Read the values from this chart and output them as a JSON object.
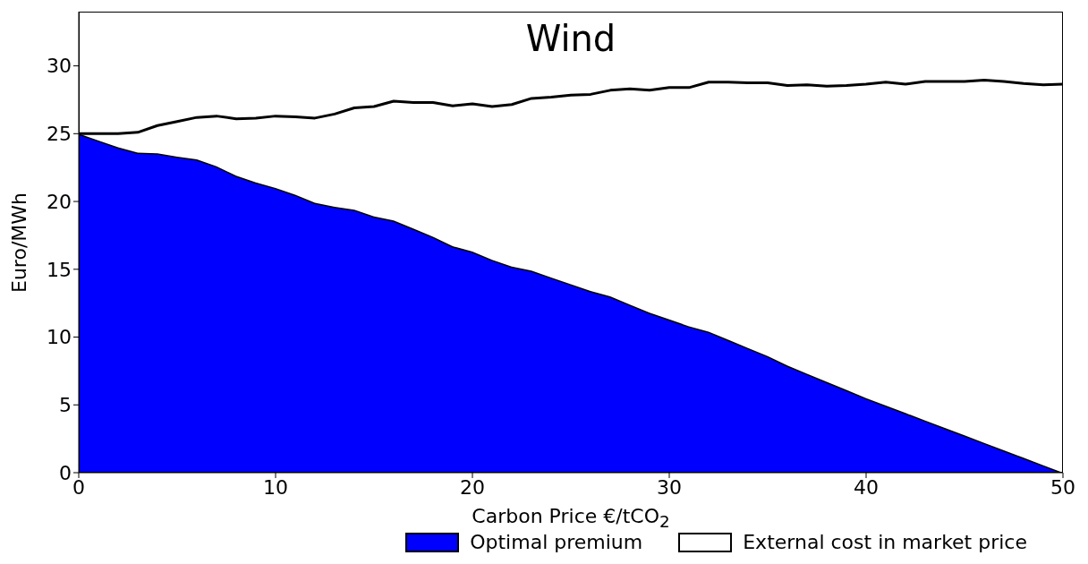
{
  "chart_data": {
    "type": "area",
    "title": "Wind",
    "xlabel": "Carbon Price €/tCO$_{2}$",
    "ylabel": "Euro/MWh",
    "stacked": true,
    "legend": "bottom right",
    "grid": false,
    "x": [
      0,
      1,
      2,
      3,
      4,
      5,
      6,
      7,
      8,
      9,
      10,
      11,
      12,
      13,
      14,
      15,
      16,
      17,
      18,
      19,
      20,
      21,
      22,
      23,
      24,
      25,
      26,
      27,
      28,
      29,
      30,
      31,
      32,
      33,
      34,
      35,
      36,
      37,
      38,
      39,
      40,
      41,
      42,
      43,
      44,
      45,
      46,
      47,
      48,
      49,
      50
    ],
    "xlim": [
      0,
      50
    ],
    "xticks": [
      0,
      10,
      20,
      30,
      40,
      50
    ],
    "ylim": [
      0,
      34
    ],
    "yticks": [
      0,
      5,
      10,
      15,
      20,
      25,
      30
    ],
    "series": [
      {
        "name": "Optimal premium",
        "color": "#0000ff",
        "values": [
          25,
          24.5,
          24.0,
          23.6,
          23.55,
          23.3,
          23.1,
          22.6,
          21.9,
          21.4,
          21.0,
          20.5,
          19.9,
          19.6,
          19.4,
          18.9,
          18.6,
          18.0,
          17.4,
          16.7,
          16.3,
          15.7,
          15.2,
          14.9,
          14.4,
          13.9,
          13.4,
          13.0,
          12.4,
          11.8,
          11.3,
          10.8,
          10.4,
          9.8,
          9.2,
          8.6,
          7.9,
          7.3,
          6.7,
          6.1,
          5.5,
          4.95,
          4.4,
          3.85,
          3.3,
          2.75,
          2.2,
          1.65,
          1.1,
          0.55,
          0
        ]
      },
      {
        "name": "External cost in market price",
        "color": "#ffffff",
        "values": [
          0,
          0.5,
          1.0,
          1.5,
          2.05,
          2.6,
          3.1,
          3.7,
          4.2,
          4.75,
          5.3,
          5.75,
          6.25,
          6.85,
          7.5,
          8.1,
          8.8,
          9.3,
          9.9,
          10.35,
          10.9,
          11.3,
          11.95,
          12.7,
          13.3,
          13.95,
          14.5,
          15.2,
          15.9,
          16.4,
          17.1,
          17.6,
          18.4,
          19.0,
          19.55,
          20.15,
          20.65,
          21.3,
          21.8,
          22.45,
          23.15,
          23.85,
          24.25,
          25.0,
          25.55,
          26.1,
          26.75,
          27.2,
          27.6,
          28.05,
          28.65
        ]
      }
    ]
  }
}
